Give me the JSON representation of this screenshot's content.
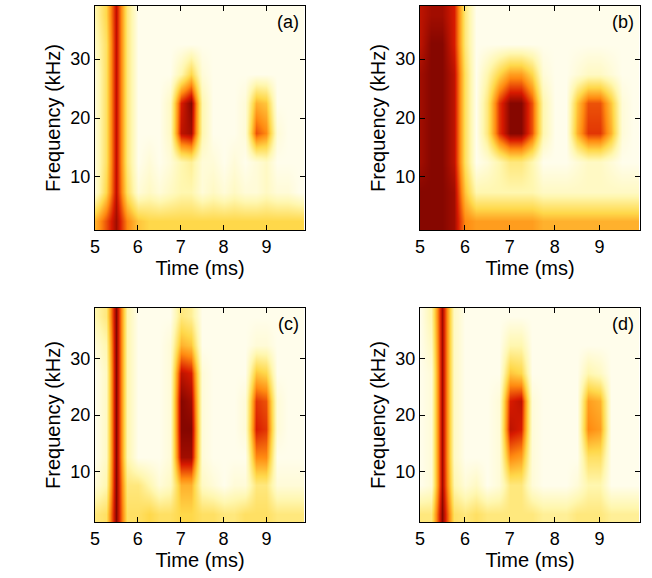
{
  "chart_data": [
    {
      "type": "heatmap",
      "title": "(a)",
      "x_label": "Time (ms)",
      "y_label": "Frequency (kHz)",
      "xlim": [
        5,
        9.9
      ],
      "ylim": [
        1,
        39
      ],
      "xticks": [
        5,
        6,
        7,
        8,
        9
      ],
      "yticks": [
        10,
        20,
        30
      ],
      "zlim": [
        0,
        1
      ],
      "x": [
        5.0,
        5.25,
        5.5,
        5.75,
        6.0,
        6.25,
        6.5,
        6.75,
        7.0,
        7.25,
        7.5,
        7.75,
        8.0,
        8.25,
        8.5,
        8.75,
        9.0,
        9.25,
        9.5,
        9.75
      ],
      "y": [
        2.5,
        7.5,
        12.5,
        17.5,
        22.5,
        27.5,
        32.5,
        37.5
      ],
      "z": [
        [
          0.5,
          0.7,
          0.9,
          0.6,
          0.45,
          0.4,
          0.4,
          0.4,
          0.4,
          0.4,
          0.4,
          0.4,
          0.4,
          0.4,
          0.4,
          0.4,
          0.4,
          0.4,
          0.4,
          0.4
        ],
        [
          0.1,
          0.4,
          0.85,
          0.35,
          0.1,
          0.15,
          0.1,
          0.15,
          0.2,
          0.2,
          0.1,
          0.15,
          0.1,
          0.15,
          0.1,
          0.1,
          0.15,
          0.1,
          0.1,
          0.05
        ],
        [
          0.1,
          0.35,
          0.85,
          0.3,
          0.05,
          0.1,
          0.05,
          0.1,
          0.2,
          0.25,
          0.1,
          0.1,
          0.05,
          0.1,
          0.05,
          0.1,
          0.15,
          0.05,
          0.05,
          0.05
        ],
        [
          0.1,
          0.35,
          0.85,
          0.3,
          0.05,
          0.05,
          0.05,
          0.15,
          0.85,
          0.9,
          0.2,
          0.05,
          0.05,
          0.05,
          0.1,
          0.7,
          0.6,
          0.1,
          0.05,
          0.05
        ],
        [
          0.1,
          0.35,
          0.85,
          0.3,
          0.05,
          0.05,
          0.05,
          0.15,
          0.8,
          0.95,
          0.2,
          0.05,
          0.05,
          0.05,
          0.1,
          0.5,
          0.45,
          0.05,
          0.05,
          0.05
        ],
        [
          0.1,
          0.35,
          0.85,
          0.3,
          0.05,
          0.05,
          0.05,
          0.05,
          0.2,
          0.4,
          0.1,
          0.05,
          0.05,
          0.05,
          0.05,
          0.05,
          0.05,
          0.05,
          0.05,
          0.05
        ],
        [
          0.15,
          0.35,
          0.85,
          0.3,
          0.05,
          0.05,
          0.05,
          0.05,
          0.05,
          0.05,
          0.05,
          0.05,
          0.05,
          0.05,
          0.05,
          0.05,
          0.05,
          0.05,
          0.05,
          0.05
        ],
        [
          0.2,
          0.4,
          0.85,
          0.3,
          0.05,
          0.05,
          0.05,
          0.05,
          0.05,
          0.05,
          0.05,
          0.05,
          0.05,
          0.05,
          0.05,
          0.05,
          0.05,
          0.05,
          0.05,
          0.05
        ]
      ]
    },
    {
      "type": "heatmap",
      "title": "(b)",
      "x_label": "Time (ms)",
      "y_label": "Frequency (kHz)",
      "xlim": [
        5,
        9.9
      ],
      "ylim": [
        1,
        39
      ],
      "xticks": [
        5,
        6,
        7,
        8,
        9
      ],
      "yticks": [
        10,
        20,
        30
      ],
      "zlim": [
        0,
        1
      ],
      "x": [
        5.0,
        5.25,
        5.5,
        5.75,
        6.0,
        6.25,
        6.5,
        6.75,
        7.0,
        7.25,
        7.5,
        7.75,
        8.0,
        8.25,
        8.5,
        8.75,
        9.0,
        9.25,
        9.5,
        9.75
      ],
      "y": [
        2.5,
        7.5,
        12.5,
        17.5,
        22.5,
        27.5,
        32.5,
        37.5
      ],
      "z": [
        [
          0.95,
          0.95,
          0.95,
          0.9,
          0.6,
          0.55,
          0.55,
          0.55,
          0.55,
          0.55,
          0.55,
          0.5,
          0.5,
          0.5,
          0.5,
          0.5,
          0.5,
          0.5,
          0.5,
          0.5
        ],
        [
          0.95,
          0.95,
          0.95,
          0.9,
          0.45,
          0.2,
          0.2,
          0.2,
          0.2,
          0.2,
          0.2,
          0.15,
          0.15,
          0.15,
          0.15,
          0.15,
          0.15,
          0.15,
          0.15,
          0.15
        ],
        [
          0.9,
          0.95,
          0.95,
          0.85,
          0.35,
          0.05,
          0.1,
          0.2,
          0.3,
          0.3,
          0.2,
          0.05,
          0.05,
          0.05,
          0.1,
          0.15,
          0.15,
          0.1,
          0.05,
          0.05
        ],
        [
          0.9,
          0.95,
          0.95,
          0.85,
          0.35,
          0.05,
          0.3,
          0.75,
          0.95,
          0.95,
          0.7,
          0.2,
          0.05,
          0.05,
          0.5,
          0.75,
          0.75,
          0.5,
          0.1,
          0.05
        ],
        [
          0.9,
          0.95,
          0.95,
          0.85,
          0.35,
          0.05,
          0.3,
          0.75,
          0.95,
          0.95,
          0.7,
          0.2,
          0.05,
          0.05,
          0.45,
          0.7,
          0.7,
          0.45,
          0.1,
          0.05
        ],
        [
          0.9,
          0.95,
          0.95,
          0.85,
          0.35,
          0.05,
          0.2,
          0.4,
          0.55,
          0.55,
          0.4,
          0.1,
          0.05,
          0.05,
          0.1,
          0.15,
          0.15,
          0.1,
          0.05,
          0.05
        ],
        [
          0.85,
          0.95,
          0.95,
          0.8,
          0.3,
          0.05,
          0.05,
          0.05,
          0.05,
          0.05,
          0.05,
          0.05,
          0.05,
          0.05,
          0.05,
          0.05,
          0.05,
          0.05,
          0.05,
          0.05
        ],
        [
          0.85,
          0.9,
          0.9,
          0.8,
          0.3,
          0.05,
          0.05,
          0.05,
          0.05,
          0.05,
          0.05,
          0.05,
          0.05,
          0.05,
          0.05,
          0.05,
          0.05,
          0.05,
          0.05,
          0.05
        ]
      ]
    },
    {
      "type": "heatmap",
      "title": "(c)",
      "x_label": "Time (ms)",
      "y_label": "Frequency (kHz)",
      "xlim": [
        5,
        9.9
      ],
      "ylim": [
        1,
        39
      ],
      "xticks": [
        5,
        6,
        7,
        8,
        9
      ],
      "yticks": [
        10,
        20,
        30
      ],
      "zlim": [
        0,
        1
      ],
      "x": [
        5.0,
        5.25,
        5.5,
        5.75,
        6.0,
        6.25,
        6.5,
        6.75,
        7.0,
        7.25,
        7.5,
        7.75,
        8.0,
        8.25,
        8.5,
        8.75,
        9.0,
        9.25,
        9.5,
        9.75
      ],
      "y": [
        2.5,
        7.5,
        12.5,
        17.5,
        22.5,
        27.5,
        32.5,
        37.5
      ],
      "z": [
        [
          0.3,
          0.35,
          0.95,
          0.35,
          0.35,
          0.4,
          0.35,
          0.35,
          0.4,
          0.4,
          0.35,
          0.35,
          0.3,
          0.3,
          0.35,
          0.35,
          0.35,
          0.3,
          0.3,
          0.3
        ],
        [
          0.1,
          0.2,
          0.95,
          0.3,
          0.3,
          0.2,
          0.1,
          0.15,
          0.5,
          0.5,
          0.15,
          0.1,
          0.05,
          0.1,
          0.1,
          0.3,
          0.3,
          0.1,
          0.1,
          0.1
        ],
        [
          0.05,
          0.15,
          0.95,
          0.2,
          0.05,
          0.05,
          0.05,
          0.1,
          0.9,
          0.9,
          0.1,
          0.05,
          0.05,
          0.05,
          0.05,
          0.6,
          0.6,
          0.05,
          0.05,
          0.05
        ],
        [
          0.05,
          0.15,
          0.95,
          0.2,
          0.05,
          0.05,
          0.05,
          0.1,
          0.95,
          0.95,
          0.1,
          0.05,
          0.05,
          0.05,
          0.1,
          0.8,
          0.75,
          0.1,
          0.05,
          0.05
        ],
        [
          0.05,
          0.15,
          0.95,
          0.2,
          0.05,
          0.05,
          0.05,
          0.1,
          0.95,
          0.9,
          0.1,
          0.05,
          0.05,
          0.05,
          0.1,
          0.75,
          0.7,
          0.1,
          0.05,
          0.05
        ],
        [
          0.05,
          0.15,
          0.95,
          0.2,
          0.05,
          0.05,
          0.05,
          0.1,
          0.85,
          0.8,
          0.1,
          0.05,
          0.05,
          0.05,
          0.05,
          0.45,
          0.4,
          0.05,
          0.05,
          0.05
        ],
        [
          0.1,
          0.2,
          0.95,
          0.2,
          0.05,
          0.05,
          0.05,
          0.1,
          0.5,
          0.45,
          0.05,
          0.05,
          0.05,
          0.05,
          0.05,
          0.1,
          0.1,
          0.05,
          0.05,
          0.05
        ],
        [
          0.2,
          0.3,
          0.95,
          0.2,
          0.05,
          0.05,
          0.05,
          0.05,
          0.3,
          0.25,
          0.05,
          0.05,
          0.05,
          0.05,
          0.05,
          0.05,
          0.05,
          0.05,
          0.05,
          0.05
        ]
      ]
    },
    {
      "type": "heatmap",
      "title": "(d)",
      "x_label": "Time (ms)",
      "y_label": "Frequency (kHz)",
      "xlim": [
        5,
        9.9
      ],
      "ylim": [
        1,
        39
      ],
      "xticks": [
        5,
        6,
        7,
        8,
        9
      ],
      "yticks": [
        10,
        20,
        30
      ],
      "zlim": [
        0,
        1
      ],
      "x": [
        5.0,
        5.25,
        5.5,
        5.75,
        6.0,
        6.25,
        6.5,
        6.75,
        7.0,
        7.25,
        7.5,
        7.75,
        8.0,
        8.25,
        8.5,
        8.75,
        9.0,
        9.25,
        9.5,
        9.75
      ],
      "y": [
        2.5,
        7.5,
        12.5,
        17.5,
        22.5,
        27.5,
        32.5,
        37.5
      ],
      "z": [
        [
          0.3,
          0.3,
          0.95,
          0.35,
          0.3,
          0.35,
          0.3,
          0.3,
          0.3,
          0.3,
          0.3,
          0.25,
          0.25,
          0.25,
          0.3,
          0.3,
          0.3,
          0.25,
          0.25,
          0.25
        ],
        [
          0.05,
          0.1,
          0.9,
          0.2,
          0.1,
          0.15,
          0.05,
          0.1,
          0.3,
          0.3,
          0.1,
          0.05,
          0.05,
          0.05,
          0.1,
          0.2,
          0.2,
          0.05,
          0.05,
          0.05
        ],
        [
          0.05,
          0.1,
          0.9,
          0.15,
          0.05,
          0.05,
          0.05,
          0.1,
          0.6,
          0.55,
          0.1,
          0.05,
          0.05,
          0.05,
          0.05,
          0.35,
          0.35,
          0.05,
          0.05,
          0.05
        ],
        [
          0.05,
          0.1,
          0.9,
          0.15,
          0.05,
          0.05,
          0.05,
          0.1,
          0.85,
          0.8,
          0.1,
          0.05,
          0.05,
          0.05,
          0.05,
          0.6,
          0.55,
          0.05,
          0.05,
          0.05
        ],
        [
          0.05,
          0.1,
          0.9,
          0.15,
          0.05,
          0.05,
          0.05,
          0.1,
          0.8,
          0.85,
          0.1,
          0.05,
          0.05,
          0.05,
          0.05,
          0.55,
          0.5,
          0.05,
          0.05,
          0.05
        ],
        [
          0.05,
          0.1,
          0.9,
          0.15,
          0.05,
          0.05,
          0.05,
          0.05,
          0.45,
          0.4,
          0.05,
          0.05,
          0.05,
          0.05,
          0.05,
          0.2,
          0.15,
          0.05,
          0.05,
          0.05
        ],
        [
          0.05,
          0.15,
          0.9,
          0.15,
          0.05,
          0.05,
          0.05,
          0.05,
          0.2,
          0.2,
          0.05,
          0.05,
          0.05,
          0.05,
          0.05,
          0.05,
          0.05,
          0.05,
          0.05,
          0.05
        ],
        [
          0.05,
          0.2,
          0.9,
          0.15,
          0.05,
          0.05,
          0.05,
          0.05,
          0.05,
          0.05,
          0.05,
          0.05,
          0.05,
          0.05,
          0.05,
          0.05,
          0.05,
          0.05,
          0.05,
          0.05
        ]
      ]
    }
  ]
}
